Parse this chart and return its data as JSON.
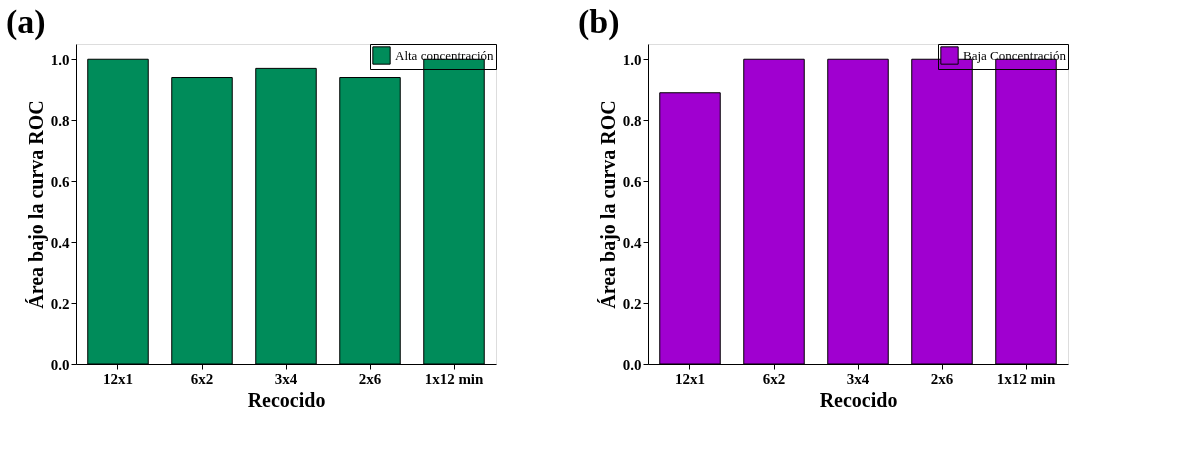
{
  "chart_data": [
    {
      "type": "bar",
      "title": "(a)",
      "xlabel": "Recocido",
      "ylabel": "Área bajo la curva ROC",
      "categories": [
        "12x1",
        "6x2",
        "3x4",
        "2x6",
        "1x12 min"
      ],
      "series": [
        {
          "name": "Alta concentración",
          "color": "#008c5a",
          "values": [
            1.0,
            0.94,
            0.97,
            0.94,
            1.0
          ]
        }
      ],
      "ylim": [
        0,
        1.05
      ],
      "yticks": [
        {
          "value": 0,
          "label": "0.0"
        },
        {
          "value": 0.2,
          "label": "0.2"
        },
        {
          "value": 0.4,
          "label": "0.4"
        },
        {
          "value": 0.6,
          "label": "0.6"
        },
        {
          "value": 0.8,
          "label": "0.8"
        },
        {
          "value": 1,
          "label": "1.0"
        }
      ],
      "grid": false,
      "legend": "top right"
    },
    {
      "type": "bar",
      "title": "(b)",
      "xlabel": "Recocido",
      "ylabel": "Área bajo la curva ROC",
      "categories": [
        "12x1",
        "6x2",
        "3x4",
        "2x6",
        "1x12 min"
      ],
      "series": [
        {
          "name": "Baja Concentración",
          "color": "#a000d0",
          "values": [
            0.89,
            1.0,
            1.0,
            1.0,
            1.0
          ]
        }
      ],
      "ylim": [
        0,
        1.05
      ],
      "yticks": [
        {
          "value": 0,
          "label": "0.0"
        },
        {
          "value": 0.2,
          "label": "0.2"
        },
        {
          "value": 0.4,
          "label": "0.4"
        },
        {
          "value": 0.6,
          "label": "0.6"
        },
        {
          "value": 0.8,
          "label": "0.8"
        },
        {
          "value": 1,
          "label": "1.0"
        }
      ],
      "grid": false,
      "legend": "top right"
    }
  ]
}
